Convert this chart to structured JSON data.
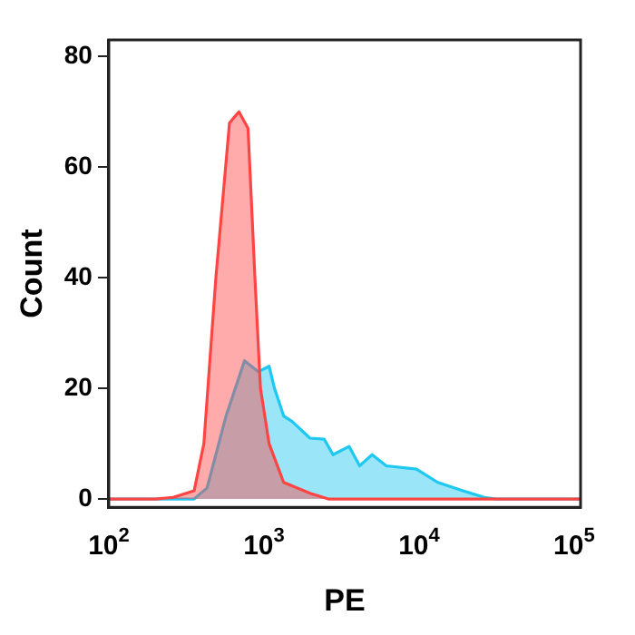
{
  "chart_data": {
    "type": "area",
    "xlabel": "PE",
    "ylabel": "Count",
    "log": "x",
    "grid": false,
    "legend": false,
    "xlim": [
      100,
      110000
    ],
    "xticks": [
      {
        "value": 100,
        "label": "10$^{2}$"
      },
      {
        "value": 1000,
        "label": "10$^{3}$"
      },
      {
        "value": 10000,
        "label": "10$^{4}$"
      },
      {
        "value": 100000,
        "label": "10$^{5}$"
      }
    ],
    "ylim": [
      -1.5,
      83
    ],
    "yticks": [
      0,
      20,
      40,
      60,
      80
    ],
    "series": [
      {
        "color": "#ff4444",
        "x": [
          100,
          200,
          260,
          355,
          410,
          490,
          600,
          690,
          790,
          875,
          950,
          1080,
          1340,
          2000,
          2600,
          110000
        ],
        "values": [
          0,
          0,
          0.3,
          1.5,
          10,
          40,
          68,
          70,
          67,
          40,
          20,
          10,
          3,
          1,
          0,
          0
        ]
      },
      {
        "color": "#1ec8f0",
        "x": [
          100,
          355,
          430,
          570,
          750,
          920,
          1080,
          1170,
          1340,
          1520,
          1980,
          2450,
          2790,
          3540,
          4140,
          4980,
          6150,
          9620,
          13200,
          18600,
          26300,
          31600,
          110000
        ],
        "values": [
          0,
          0,
          2,
          15,
          25,
          23,
          24,
          20,
          15,
          14,
          11,
          10.8,
          8,
          9.5,
          6,
          8,
          6,
          5.4,
          3,
          1.6,
          0.3,
          0,
          0
        ]
      }
    ]
  }
}
